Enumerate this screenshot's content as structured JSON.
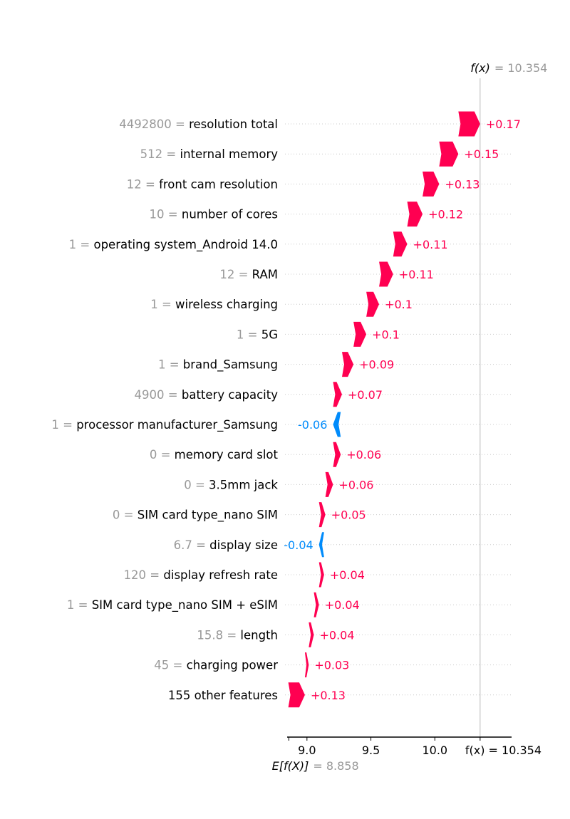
{
  "chart_data": {
    "type": "waterfall",
    "fx_label": "f(x)",
    "fx_value": "10.354",
    "fx_numeric": 10.354,
    "base_label": "E[f(X)]",
    "base_value": "8.858",
    "base_numeric": 8.858,
    "xticks": [
      9.0,
      9.5,
      10.0
    ],
    "xtick_labels": [
      "9.0",
      "9.5",
      "10.0"
    ],
    "xlim": [
      8.845,
      10.6
    ],
    "colors": {
      "positive": "#ff0051",
      "negative": "#008bfb"
    },
    "features": [
      {
        "value": "4492800",
        "name": "resolution total",
        "contribution": 0.17,
        "label": "+0.17"
      },
      {
        "value": "512",
        "name": "internal memory",
        "contribution": 0.15,
        "label": "+0.15"
      },
      {
        "value": "12",
        "name": "front cam resolution",
        "contribution": 0.13,
        "label": "+0.13"
      },
      {
        "value": "10",
        "name": "number of cores",
        "contribution": 0.12,
        "label": "+0.12"
      },
      {
        "value": "1",
        "name": "operating system_Android 14.0",
        "contribution": 0.11,
        "label": "+0.11"
      },
      {
        "value": "12",
        "name": "RAM",
        "contribution": 0.11,
        "label": "+0.11"
      },
      {
        "value": "1",
        "name": "wireless charging",
        "contribution": 0.1,
        "label": "+0.1"
      },
      {
        "value": "1",
        "name": "5G",
        "contribution": 0.1,
        "label": "+0.1"
      },
      {
        "value": "1",
        "name": "brand_Samsung",
        "contribution": 0.09,
        "label": "+0.09"
      },
      {
        "value": "4900",
        "name": "battery capacity",
        "contribution": 0.07,
        "label": "+0.07"
      },
      {
        "value": "1",
        "name": "processor manufacturer_Samsung",
        "contribution": -0.06,
        "label": "-0.06"
      },
      {
        "value": "0",
        "name": "memory card slot",
        "contribution": 0.06,
        "label": "+0.06"
      },
      {
        "value": "0",
        "name": "3.5mm jack",
        "contribution": 0.06,
        "label": "+0.06"
      },
      {
        "value": "0",
        "name": "SIM card type_nano SIM",
        "contribution": 0.05,
        "label": "+0.05"
      },
      {
        "value": "6.7",
        "name": "display size",
        "contribution": -0.04,
        "label": "-0.04"
      },
      {
        "value": "120",
        "name": "display refresh rate",
        "contribution": 0.04,
        "label": "+0.04"
      },
      {
        "value": "1",
        "name": "SIM card type_nano SIM  + eSIM",
        "contribution": 0.04,
        "label": "+0.04"
      },
      {
        "value": "15.8",
        "name": "length",
        "contribution": 0.04,
        "label": "+0.04"
      },
      {
        "value": "45",
        "name": "charging power",
        "contribution": 0.03,
        "label": "+0.03"
      },
      {
        "value": "",
        "name": "155 other features",
        "contribution": 0.13,
        "label": "+0.13"
      }
    ]
  }
}
